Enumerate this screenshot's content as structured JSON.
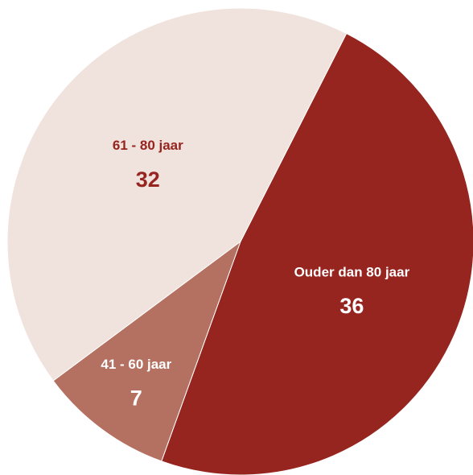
{
  "chart_data": {
    "type": "pie",
    "categories": [
      "Ouder dan 80 jaar",
      "41 - 60 jaar",
      "61 - 80 jaar"
    ],
    "values": [
      36,
      7,
      32
    ],
    "colors": [
      "#96241f",
      "#b47060",
      "#f0e2dc"
    ],
    "label_colors": [
      "#ffffff",
      "#ffffff",
      "#96241f"
    ]
  }
}
